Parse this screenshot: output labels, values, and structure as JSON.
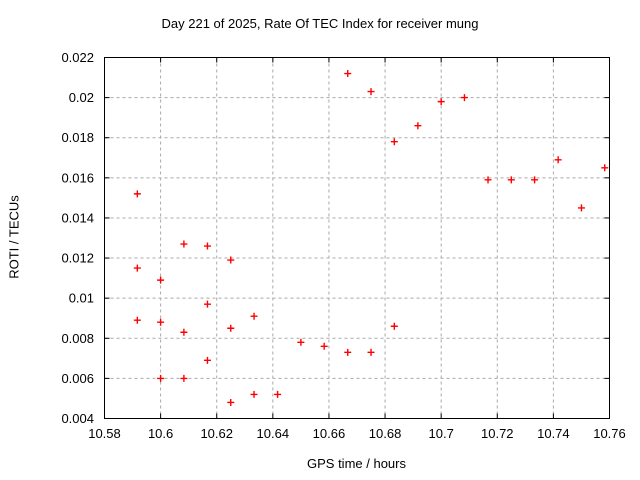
{
  "chart_data": {
    "type": "scatter",
    "title": "Day 221 of 2025, Rate Of TEC Index for receiver mung",
    "xlabel": "GPS time / hours",
    "ylabel": "ROTI / TECUs",
    "xlim": [
      10.58,
      10.76
    ],
    "ylim": [
      0.004,
      0.022
    ],
    "grid": true,
    "legend_position": "none",
    "marker": {
      "shape": "plus",
      "color": "#ff0000",
      "size": 7
    },
    "colors": {
      "background": "#ffffff",
      "axis": "#000000",
      "grid": "#a8a8a8",
      "marker": "#ff0000"
    },
    "xticks": [
      {
        "v": 10.58,
        "label": "10.58"
      },
      {
        "v": 10.6,
        "label": "10.6"
      },
      {
        "v": 10.62,
        "label": "10.62"
      },
      {
        "v": 10.64,
        "label": "10.64"
      },
      {
        "v": 10.66,
        "label": "10.66"
      },
      {
        "v": 10.68,
        "label": "10.68"
      },
      {
        "v": 10.7,
        "label": "10.7"
      },
      {
        "v": 10.72,
        "label": "10.72"
      },
      {
        "v": 10.74,
        "label": "10.74"
      },
      {
        "v": 10.76,
        "label": "10.76"
      }
    ],
    "yticks": [
      {
        "v": 0.004,
        "label": "0.004"
      },
      {
        "v": 0.006,
        "label": "0.006"
      },
      {
        "v": 0.008,
        "label": "0.008"
      },
      {
        "v": 0.01,
        "label": "0.01"
      },
      {
        "v": 0.012,
        "label": "0.012"
      },
      {
        "v": 0.014,
        "label": "0.014"
      },
      {
        "v": 0.016,
        "label": "0.016"
      },
      {
        "v": 0.018,
        "label": "0.018"
      },
      {
        "v": 0.02,
        "label": "0.02"
      },
      {
        "v": 0.022,
        "label": "0.022"
      }
    ],
    "points": [
      {
        "x": 10.5917,
        "y": 0.0152
      },
      {
        "x": 10.5917,
        "y": 0.0115
      },
      {
        "x": 10.5917,
        "y": 0.0089
      },
      {
        "x": 10.6,
        "y": 0.0109
      },
      {
        "x": 10.6,
        "y": 0.0088
      },
      {
        "x": 10.6,
        "y": 0.006
      },
      {
        "x": 10.6083,
        "y": 0.0127
      },
      {
        "x": 10.6083,
        "y": 0.0083
      },
      {
        "x": 10.6083,
        "y": 0.006
      },
      {
        "x": 10.6167,
        "y": 0.0126
      },
      {
        "x": 10.6167,
        "y": 0.0097
      },
      {
        "x": 10.6167,
        "y": 0.0069
      },
      {
        "x": 10.625,
        "y": 0.0119
      },
      {
        "x": 10.625,
        "y": 0.0085
      },
      {
        "x": 10.625,
        "y": 0.0048
      },
      {
        "x": 10.6333,
        "y": 0.0091
      },
      {
        "x": 10.6333,
        "y": 0.0052
      },
      {
        "x": 10.6417,
        "y": 0.0052
      },
      {
        "x": 10.65,
        "y": 0.0078
      },
      {
        "x": 10.6583,
        "y": 0.0076
      },
      {
        "x": 10.6667,
        "y": 0.0212
      },
      {
        "x": 10.6667,
        "y": 0.0073
      },
      {
        "x": 10.675,
        "y": 0.0203
      },
      {
        "x": 10.675,
        "y": 0.0073
      },
      {
        "x": 10.6833,
        "y": 0.0178
      },
      {
        "x": 10.6833,
        "y": 0.0086
      },
      {
        "x": 10.6917,
        "y": 0.0186
      },
      {
        "x": 10.7,
        "y": 0.0198
      },
      {
        "x": 10.7083,
        "y": 0.02
      },
      {
        "x": 10.7167,
        "y": 0.0159
      },
      {
        "x": 10.725,
        "y": 0.0159
      },
      {
        "x": 10.7333,
        "y": 0.0159
      },
      {
        "x": 10.7417,
        "y": 0.0169
      },
      {
        "x": 10.75,
        "y": 0.0145
      },
      {
        "x": 10.7583,
        "y": 0.0165
      }
    ]
  }
}
